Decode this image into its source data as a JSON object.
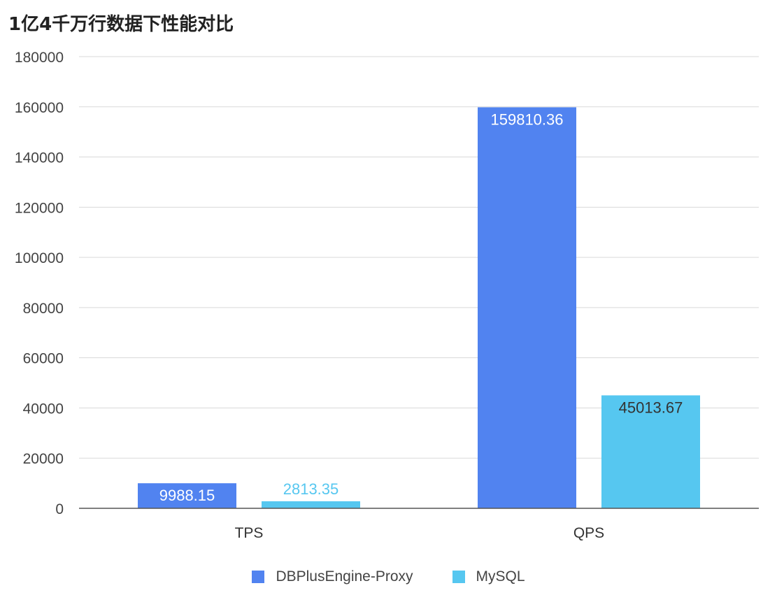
{
  "chart_data": {
    "type": "bar",
    "title": "1亿4千万行数据下性能对比",
    "categories": [
      "TPS",
      "QPS"
    ],
    "series": [
      {
        "name": "DBPlusEngine-Proxy",
        "color": "#5183F0",
        "values": [
          9988.15,
          159810.36
        ],
        "labels": [
          "9988.15",
          "159810.36"
        ],
        "label_color": "#ffffff"
      },
      {
        "name": "MySQL",
        "color": "#56C7F0",
        "values": [
          2813.35,
          45013.67
        ],
        "labels": [
          "2813.35",
          "45013.67"
        ],
        "label_color": "#333333"
      }
    ],
    "ylim": [
      0,
      180000
    ],
    "yticks": [
      "0",
      "20000",
      "40000",
      "60000",
      "80000",
      "100000",
      "120000",
      "140000",
      "160000",
      "180000"
    ],
    "grid": true,
    "legend_position": "bottom"
  }
}
